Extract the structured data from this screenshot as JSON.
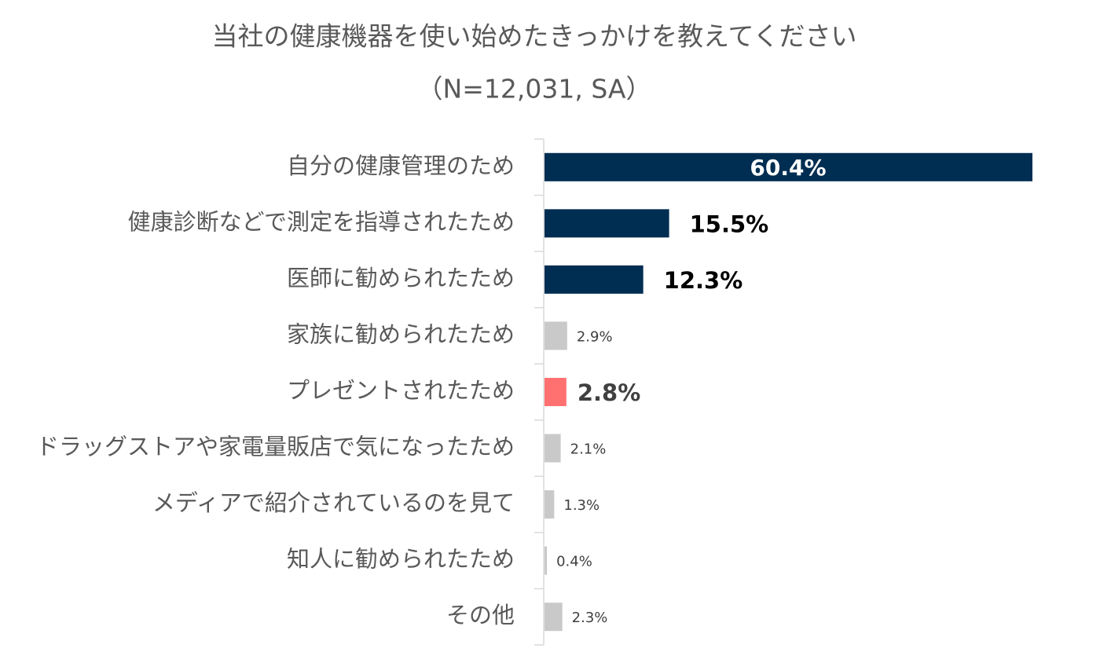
{
  "chart_data": {
    "type": "bar",
    "orientation": "horizontal",
    "title": "当社の健康機器を使い始めたきっかけを教えてください",
    "subtitle": "（N=12,031, SA）",
    "categories": [
      "自分の健康管理のため",
      "健康診断などで測定を指導されたため",
      "医師に勧められたため",
      "家族に勧められたため",
      "プレゼントされたため",
      "ドラッグストアや家電量販店で気になったため",
      "メディアで紹介されているのを見て",
      "知人に勧められたため",
      "その他"
    ],
    "values": [
      60.4,
      15.5,
      12.3,
      2.9,
      2.8,
      2.1,
      1.3,
      0.4,
      2.3
    ],
    "value_labels": [
      "60.4%",
      "15.5%",
      "12.3%",
      "2.9%",
      "2.8%",
      "2.1%",
      "1.3%",
      "0.4%",
      "2.3%"
    ],
    "colors": [
      "#002d52",
      "#002d52",
      "#002d52",
      "#c9c9c9",
      "#ff7171",
      "#c9c9c9",
      "#c9c9c9",
      "#c9c9c9",
      "#c9c9c9"
    ]
  }
}
